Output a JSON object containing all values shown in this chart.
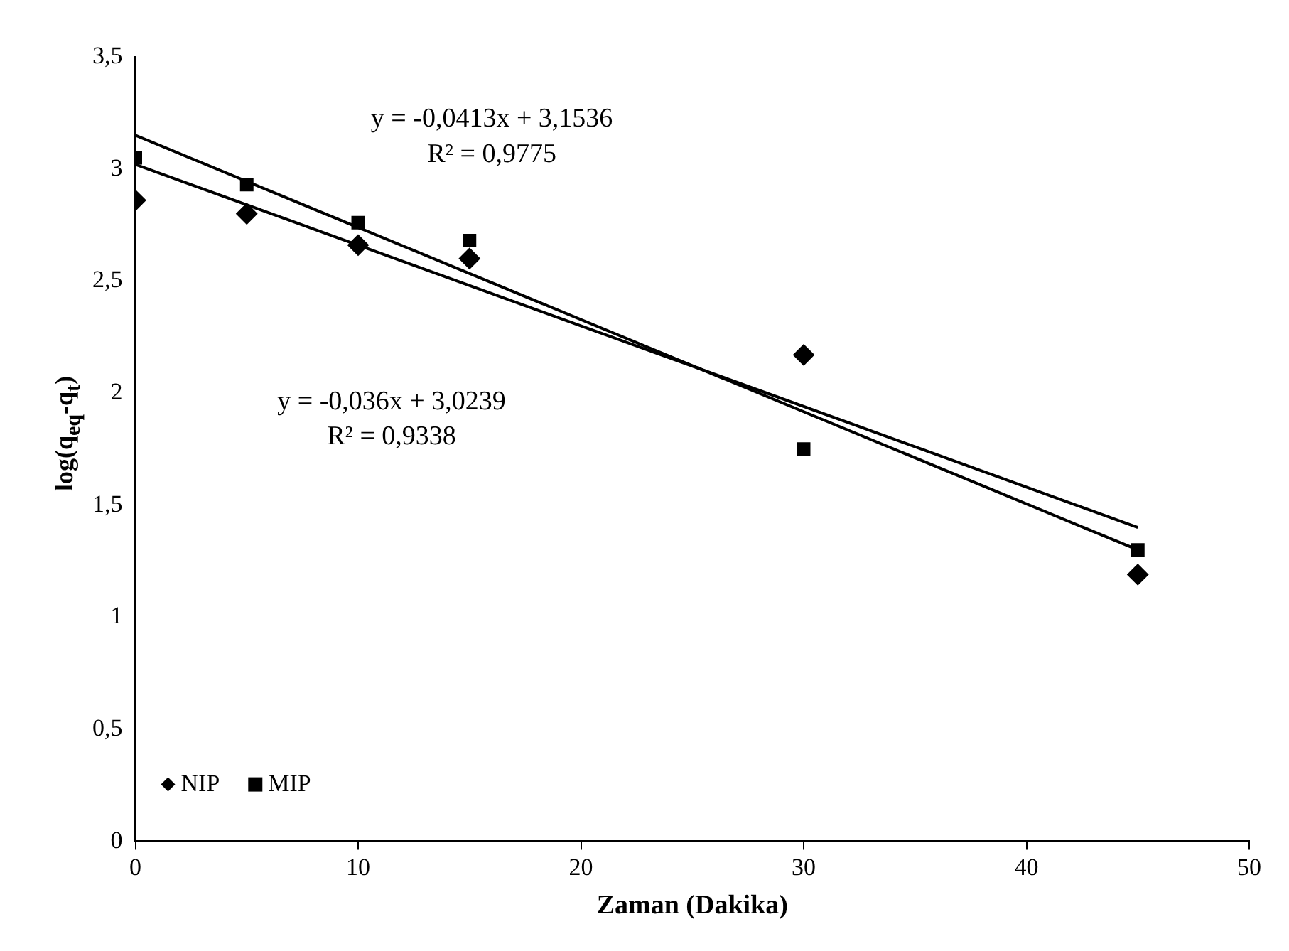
{
  "chart_data": {
    "type": "scatter",
    "xlabel": "Zaman (Dakika)",
    "ylabel": "log(q$_{eq}$-q$_{t}$)",
    "xlim": [
      0,
      50
    ],
    "xticks": [
      0,
      10,
      20,
      30,
      40,
      50
    ],
    "ylim": [
      0,
      3.5
    ],
    "yticks": [
      0,
      {
        "value": 0.5,
        "label": "0,5"
      },
      1,
      {
        "value": 1.5,
        "label": "1,5"
      },
      2,
      {
        "value": 2.5,
        "label": "2,5"
      },
      3,
      {
        "value": 3.5,
        "label": "3,5"
      }
    ],
    "grid": false,
    "legend": "bottom left",
    "series": [
      {
        "name": "NIP",
        "type": "scatter",
        "marker": "diamond",
        "color": "#000000",
        "x": [
          0,
          5,
          10,
          15,
          30,
          45
        ],
        "values": [
          2.86,
          2.8,
          2.66,
          2.6,
          2.17,
          1.19
        ]
      },
      {
        "name": "MIP",
        "type": "scatter",
        "marker": "square",
        "color": "#000000",
        "x": [
          0,
          5,
          10,
          15,
          30,
          45
        ],
        "values": [
          3.05,
          2.93,
          2.76,
          2.68,
          1.75,
          1.3
        ]
      },
      {
        "type": "line",
        "marker": "none",
        "color": "#000000",
        "x": [
          0,
          45
        ],
        "values": [
          3.15,
          1.3
        ]
      },
      {
        "type": "line",
        "marker": "none",
        "color": "#000000",
        "x": [
          0,
          45
        ],
        "values": [
          3.02,
          1.4
        ]
      }
    ],
    "annotations": [
      "y = -0,0413x + 3,1536",
      "R² = 0,9775",
      "y = -0,036x + 3,0239",
      "R² = 0,9338"
    ]
  }
}
